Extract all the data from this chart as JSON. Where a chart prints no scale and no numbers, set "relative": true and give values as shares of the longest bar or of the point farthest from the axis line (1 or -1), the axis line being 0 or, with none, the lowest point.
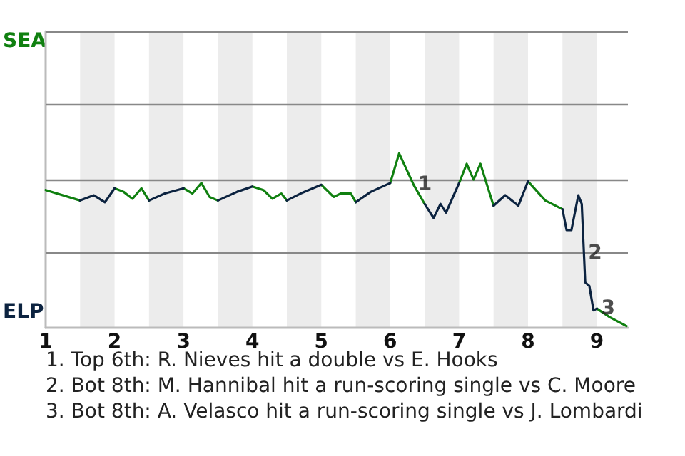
{
  "chart_data": {
    "type": "line",
    "relative": true,
    "x": [
      1,
      1.5,
      1.7,
      1.86,
      2,
      2.13,
      2.26,
      2.39,
      2.5,
      2.73,
      3,
      3.13,
      3.26,
      3.38,
      3.5,
      3.78,
      4,
      4.16,
      4.29,
      4.42,
      4.5,
      4.7,
      5,
      5.18,
      5.28,
      5.43,
      5.5,
      5.72,
      6,
      6.13,
      6.34,
      6.5,
      6.63,
      6.73,
      6.81,
      7,
      7.11,
      7.21,
      7.31,
      7.5,
      7.67,
      7.86,
      8,
      8.25,
      8.5,
      8.56,
      8.63,
      8.73,
      8.78,
      8.83,
      8.89,
      8.95,
      9,
      9.19,
      9.43
    ],
    "series": [
      {
        "color": "#108010",
        "values": [
          0.79,
          0.73,
          null,
          null,
          0.8,
          0.78,
          0.74,
          0.8,
          0.73,
          null,
          0.8,
          0.77,
          0.83,
          0.75,
          0.73,
          null,
          0.81,
          0.79,
          0.74,
          0.77,
          0.73,
          null,
          0.82,
          0.75,
          0.77,
          0.77,
          0.72,
          null,
          0.83,
          1,
          0.82,
          0.71,
          null,
          null,
          null,
          0.83,
          0.94,
          0.85,
          0.94,
          0.7,
          null,
          null,
          0.84,
          0.73,
          0.68,
          null,
          null,
          null,
          null,
          null,
          null,
          null,
          0.11,
          0.06,
          0.01
        ]
      },
      {
        "color": "#0c2340",
        "values": [
          null,
          0.73,
          0.76,
          0.72,
          0.8,
          null,
          null,
          null,
          0.73,
          0.77,
          0.8,
          null,
          null,
          null,
          0.73,
          0.78,
          0.81,
          null,
          null,
          null,
          0.73,
          0.77,
          0.82,
          null,
          null,
          null,
          0.72,
          0.78,
          0.83,
          null,
          null,
          0.71,
          0.63,
          0.71,
          0.66,
          0.83,
          null,
          null,
          null,
          0.7,
          0.76,
          0.7,
          0.84,
          null,
          0.68,
          0.56,
          0.56,
          0.76,
          0.71,
          0.26,
          0.24,
          0.1,
          0.11,
          null,
          null
        ]
      }
    ],
    "xlim": [
      1,
      9.45
    ],
    "xticks": [
      1,
      2,
      3,
      4,
      5,
      6,
      7,
      8,
      9
    ],
    "ref_lines": [
      {
        "axis": "y",
        "value": 0.43,
        "color": "#888888"
      },
      {
        "axis": "y",
        "value": 0.85,
        "color": "#888888"
      },
      {
        "axis": "y",
        "value": 1.28,
        "color": "#888888"
      },
      {
        "axis": "y",
        "value": 1.7,
        "color": "#888888"
      }
    ],
    "marker": "none",
    "line_style": "solid",
    "bands": [
      {
        "axis": "x",
        "from": 1.5,
        "to": 2,
        "color": "#ececec"
      },
      {
        "axis": "x",
        "from": 2.5,
        "to": 3,
        "color": "#ececec"
      },
      {
        "axis": "x",
        "from": 3.5,
        "to": 4,
        "color": "#ececec"
      },
      {
        "axis": "x",
        "from": 4.5,
        "to": 5,
        "color": "#ececec"
      },
      {
        "axis": "x",
        "from": 5.5,
        "to": 6,
        "color": "#ececec"
      },
      {
        "axis": "x",
        "from": 6.5,
        "to": 7,
        "color": "#ececec"
      },
      {
        "axis": "x",
        "from": 7.5,
        "to": 8,
        "color": "#ececec"
      },
      {
        "axis": "x",
        "from": 8.5,
        "to": 9,
        "color": "#ececec"
      }
    ],
    "annotations": [
      {
        "text": "1",
        "x": 6.34,
        "y": 0.82
      },
      {
        "text": "2",
        "x": 8.81,
        "y": 0.43
      },
      {
        "text": "3",
        "x": 9,
        "y": 0.11
      },
      "SEA",
      "ELP",
      "1. Top 6th: R. Nieves hit a double vs E. Hooks",
      "2. Bot 8th: M. Hannibal hit a run-scoring single vs C. Moore",
      "3. Bot 8th: A. Velasco hit a run-scoring single vs J. Lombardi"
    ]
  }
}
